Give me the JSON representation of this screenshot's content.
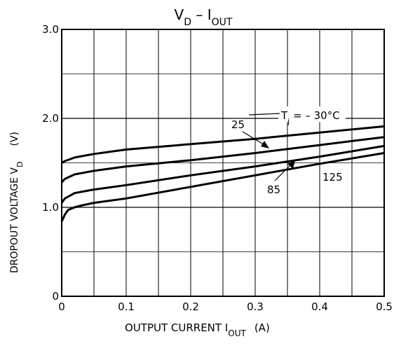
{
  "chart_data": {
    "type": "line",
    "title": {
      "main": "V",
      "main_sub": "D",
      "sep": " – ",
      "second": "I",
      "second_sub": "OUT"
    },
    "xlabel": {
      "main": "OUTPUT CURRENT  I",
      "sub": "OUT",
      "unit": "(A)"
    },
    "ylabel": {
      "main": "DROPOUT VOLTAGE  V",
      "sub": "D",
      "unit": "(V)"
    },
    "xlim": [
      0,
      0.5
    ],
    "ylim": [
      0,
      3.0
    ],
    "x_ticks": [
      0,
      0.1,
      0.2,
      0.3,
      0.4,
      0.5
    ],
    "x_tick_labels": [
      "0",
      "0.1",
      "0.2",
      "0.3",
      "0.4",
      "0.5"
    ],
    "y_ticks": [
      0,
      1.0,
      2.0,
      3.0
    ],
    "y_tick_labels": [
      "0",
      "1.0",
      "2.0",
      "3.0"
    ],
    "grid": true,
    "temperature_label": {
      "prefix": "T",
      "sub": "j",
      "value": " = – 30°C"
    },
    "series": [
      {
        "name": "– 30°C",
        "x": [
          0,
          0.005,
          0.02,
          0.05,
          0.1,
          0.2,
          0.3,
          0.4,
          0.5
        ],
        "values": [
          1.5,
          1.52,
          1.56,
          1.6,
          1.65,
          1.71,
          1.77,
          1.84,
          1.91
        ]
      },
      {
        "name": "25",
        "x": [
          0,
          0.005,
          0.02,
          0.05,
          0.1,
          0.2,
          0.3,
          0.4,
          0.5
        ],
        "values": [
          1.28,
          1.32,
          1.37,
          1.41,
          1.46,
          1.53,
          1.61,
          1.7,
          1.79
        ]
      },
      {
        "name": "85",
        "x": [
          0,
          0.005,
          0.02,
          0.05,
          0.1,
          0.2,
          0.3,
          0.4,
          0.5
        ],
        "values": [
          1.05,
          1.1,
          1.16,
          1.2,
          1.25,
          1.36,
          1.46,
          1.57,
          1.69
        ]
      },
      {
        "name": "125",
        "x": [
          0,
          0.005,
          0.01,
          0.02,
          0.03,
          0.05,
          0.1,
          0.2,
          0.3,
          0.4,
          0.5
        ],
        "values": [
          0.84,
          0.92,
          0.97,
          1.0,
          1.02,
          1.05,
          1.1,
          1.23,
          1.36,
          1.49,
          1.61
        ]
      }
    ],
    "annotations": [
      {
        "text": "25",
        "x": 0.27,
        "y": 1.93
      },
      {
        "text": "85",
        "x": 0.33,
        "y": 1.17
      },
      {
        "text": "125",
        "x": 0.42,
        "y": 1.3
      }
    ]
  }
}
